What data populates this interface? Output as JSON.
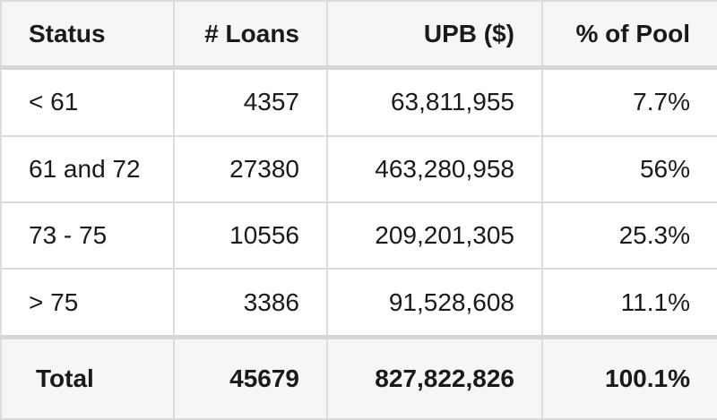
{
  "table": {
    "headers": [
      "Status",
      "# Loans",
      "UPB ($)",
      "% of Pool"
    ],
    "rows": [
      [
        "< 61",
        "4357",
        "63,811,955",
        "7.7%"
      ],
      [
        "61 and 72",
        "27380",
        "463,280,958",
        "56%"
      ],
      [
        "73 - 75",
        "10556",
        "209,201,305",
        "25.3%"
      ],
      [
        "> 75",
        "3386",
        "91,528,608",
        "11.1%"
      ]
    ],
    "total": [
      "Total",
      "45679",
      "827,822,826",
      "100.1%"
    ]
  }
}
